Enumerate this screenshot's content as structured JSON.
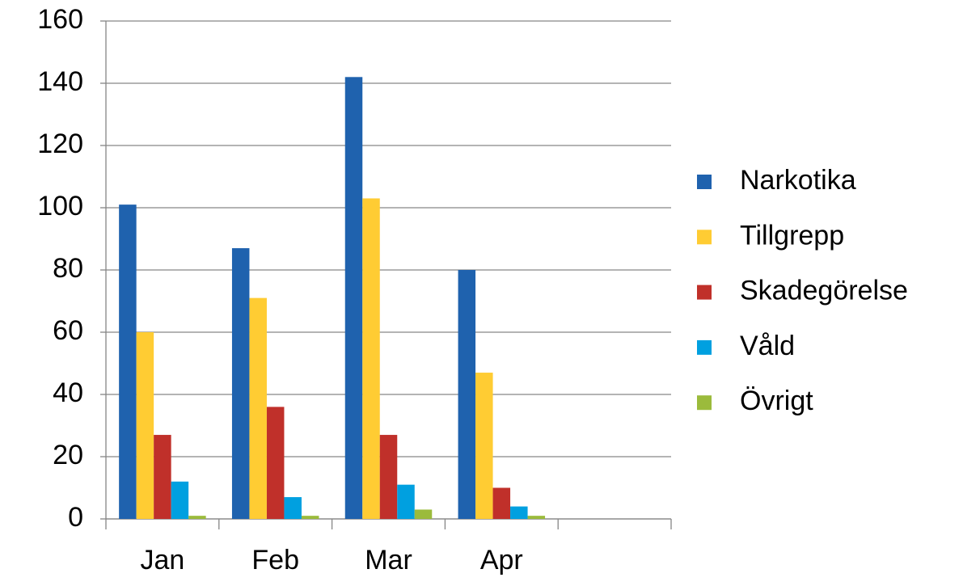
{
  "chart_data": {
    "type": "bar",
    "categories": [
      "Jan",
      "Feb",
      "Mar",
      "Apr",
      null
    ],
    "series": [
      {
        "name": "Narkotika",
        "color": "#1f62ae",
        "values": [
          101,
          87,
          142,
          80,
          null
        ]
      },
      {
        "name": "Tillgrepp",
        "color": "#ffcc33",
        "values": [
          60,
          71,
          103,
          47,
          null
        ]
      },
      {
        "name": "Skadegörelse",
        "color": "#c0302a",
        "values": [
          27,
          36,
          27,
          10,
          null
        ]
      },
      {
        "name": "Våld",
        "color": "#00a0e0",
        "values": [
          12,
          7,
          11,
          4,
          null
        ]
      },
      {
        "name": "Övrigt",
        "color": "#9bbb3c",
        "values": [
          1,
          1,
          3,
          1,
          null
        ]
      }
    ],
    "ylim": [
      0,
      160
    ],
    "yticks": [
      0,
      20,
      40,
      60,
      80,
      100,
      120,
      140,
      160
    ],
    "grid": true,
    "legend": "right"
  }
}
